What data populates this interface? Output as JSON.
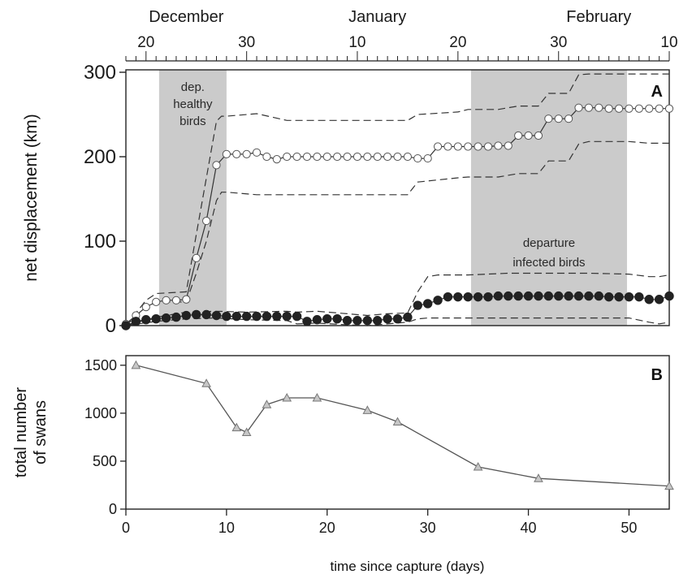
{
  "chart_data": [
    {
      "id": "A",
      "type": "line",
      "panel_label": "A",
      "ylabel": "net displacement (km)",
      "xlim": [
        0,
        54
      ],
      "ylim": [
        0,
        300
      ],
      "yticks": [
        0,
        100,
        200,
        300
      ],
      "grid": false,
      "top_axis": {
        "months": [
          {
            "label": "December",
            "day": 6
          },
          {
            "label": "January",
            "day": 25
          },
          {
            "label": "February",
            "day": 47
          }
        ],
        "date_ticks": [
          {
            "label": "20",
            "day": 2
          },
          {
            "label": "30",
            "day": 12
          },
          {
            "label": "10",
            "day": 23
          },
          {
            "label": "20",
            "day": 33
          },
          {
            "label": "30",
            "day": 43
          },
          {
            "label": "10",
            "day": 54
          }
        ]
      },
      "shaded_regions": [
        {
          "x0": 3.3,
          "x1": 10,
          "label_lines": [
            "dep.",
            "healthy",
            "birds"
          ]
        },
        {
          "x0": 34.3,
          "x1": 49.8,
          "label_lines": [
            "departure",
            "infected birds"
          ]
        }
      ],
      "series": [
        {
          "marker": "open-circle",
          "x": [
            0,
            1,
            2,
            3,
            4,
            5,
            6,
            7,
            8,
            9,
            10,
            11,
            12,
            13,
            14,
            15,
            16,
            17,
            18,
            19,
            20,
            21,
            22,
            23,
            24,
            25,
            26,
            27,
            28,
            29,
            30,
            31,
            32,
            33,
            34,
            35,
            36,
            37,
            38,
            39,
            40,
            41,
            42,
            43,
            44,
            45,
            46,
            47,
            48,
            49,
            50,
            51,
            52,
            53,
            54
          ],
          "y": [
            2,
            12,
            22,
            28,
            30,
            30,
            31,
            80,
            124,
            190,
            203,
            203,
            203,
            205,
            200,
            197,
            200,
            200,
            200,
            200,
            200,
            200,
            200,
            200,
            200,
            200,
            200,
            200,
            200,
            198,
            198,
            212,
            212,
            212,
            212,
            212,
            212,
            213,
            213,
            225,
            225,
            225,
            245,
            245,
            245,
            258,
            258,
            258,
            257,
            257,
            257,
            257,
            257,
            257,
            257
          ]
        },
        {
          "marker": "filled-circle",
          "x": [
            0,
            1,
            2,
            3,
            4,
            5,
            6,
            7,
            8,
            9,
            10,
            11,
            12,
            13,
            14,
            15,
            16,
            17,
            18,
            19,
            20,
            21,
            22,
            23,
            24,
            25,
            26,
            27,
            28,
            29,
            30,
            31,
            32,
            33,
            34,
            35,
            36,
            37,
            38,
            39,
            40,
            41,
            42,
            43,
            44,
            45,
            46,
            47,
            48,
            49,
            50,
            51,
            52,
            53,
            54
          ],
          "y": [
            0,
            5,
            7,
            8,
            9,
            10,
            12,
            13,
            13,
            12,
            11,
            11,
            11,
            11,
            11,
            11,
            11,
            11,
            5,
            7,
            8,
            8,
            6,
            6,
            6,
            6,
            8,
            8,
            10,
            24,
            26,
            30,
            34,
            34,
            34,
            34,
            34,
            35,
            35,
            35,
            35,
            35,
            35,
            35,
            35,
            35,
            35,
            35,
            34,
            34,
            34,
            34,
            31,
            31,
            35
          ]
        },
        {
          "style": "dashed",
          "x": [
            0,
            2,
            3,
            6,
            7,
            8,
            9,
            9.5,
            10,
            13,
            16,
            19,
            24,
            28,
            29,
            33,
            34,
            37,
            39,
            41,
            42,
            44,
            45,
            46,
            48,
            50,
            52,
            54
          ],
          "y": [
            0,
            30,
            38,
            40,
            108,
            175,
            242,
            248,
            248,
            251,
            243,
            243,
            243,
            243,
            250,
            253,
            256,
            256,
            260,
            260,
            275,
            275,
            297,
            298,
            298,
            298,
            298,
            298
          ]
        },
        {
          "style": "dashed",
          "x": [
            0,
            2,
            3,
            6,
            7,
            8,
            9,
            9.5,
            10,
            13,
            16,
            19,
            24,
            28,
            29,
            33,
            34,
            37,
            39,
            41,
            42,
            44,
            45,
            46,
            48,
            50,
            52,
            54
          ],
          "y": [
            0,
            22,
            28,
            28,
            62,
            100,
            148,
            158,
            158,
            155,
            155,
            155,
            155,
            155,
            170,
            175,
            176,
            176,
            180,
            180,
            195,
            195,
            215,
            218,
            218,
            218,
            216,
            216
          ]
        },
        {
          "style": "dashed",
          "x": [
            0,
            3,
            6,
            9,
            12,
            16,
            17,
            19,
            22,
            24,
            26,
            28,
            29,
            30,
            31,
            34,
            38,
            42,
            46,
            50,
            52,
            53,
            54
          ],
          "y": [
            0,
            10,
            16,
            17,
            16,
            17,
            16,
            17,
            14,
            12,
            14,
            15,
            40,
            58,
            60,
            60,
            62,
            62,
            62,
            61,
            58,
            58,
            60
          ]
        },
        {
          "style": "dashed",
          "x": [
            0,
            3,
            6,
            9,
            12,
            16,
            17,
            19,
            22,
            24,
            26,
            28,
            29,
            30,
            31,
            34,
            38,
            42,
            46,
            50,
            52,
            53,
            54
          ],
          "y": [
            0,
            5,
            8,
            9,
            7,
            6,
            2,
            3,
            1,
            0,
            2,
            4,
            8,
            9,
            9,
            9,
            9,
            9,
            9,
            9,
            4,
            2,
            4
          ]
        }
      ]
    },
    {
      "id": "B",
      "type": "line",
      "panel_label": "B",
      "ylabel": "total number\nof swans",
      "xlabel": "time since capture (days)",
      "xlim": [
        0,
        54
      ],
      "ylim": [
        0,
        1600
      ],
      "xticks": [
        0,
        10,
        20,
        30,
        40,
        50
      ],
      "yticks": [
        0,
        500,
        1000,
        1500
      ],
      "grid": false,
      "series": [
        {
          "marker": "triangle",
          "x": [
            1,
            8,
            11,
            12,
            14,
            16,
            19,
            24,
            27,
            35,
            41,
            54
          ],
          "y": [
            1500,
            1310,
            850,
            800,
            1090,
            1160,
            1160,
            1030,
            910,
            440,
            320,
            240
          ]
        }
      ]
    }
  ]
}
